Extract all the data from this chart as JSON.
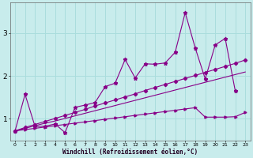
{
  "xlabel": "Windchill (Refroidissement éolien,°C)",
  "background_color": "#c8ecec",
  "line_color": "#880088",
  "grid_color": "#aadddd",
  "xlim": [
    -0.5,
    23.5
  ],
  "ylim": [
    0.5,
    3.7
  ],
  "yticks": [
    1,
    2,
    3
  ],
  "xticks": [
    0,
    1,
    2,
    3,
    4,
    5,
    6,
    7,
    8,
    9,
    10,
    11,
    12,
    13,
    14,
    15,
    16,
    17,
    18,
    19,
    20,
    21,
    22,
    23
  ],
  "s1_x": [
    0,
    1,
    2,
    3,
    4,
    5,
    6,
    7,
    8,
    9,
    10,
    11,
    12,
    13,
    14,
    15,
    16,
    17,
    18,
    19,
    20,
    21,
    22
  ],
  "s1_y": [
    0.72,
    1.57,
    0.82,
    0.83,
    0.88,
    0.68,
    1.27,
    1.32,
    1.38,
    1.75,
    1.83,
    2.38,
    1.95,
    2.28,
    2.27,
    2.3,
    2.55,
    3.47,
    2.65,
    1.93,
    2.72,
    2.87,
    1.65
  ],
  "s2_x": [
    0,
    1,
    2,
    3,
    4,
    5,
    6,
    7,
    8,
    9,
    10,
    11,
    12,
    13,
    14,
    15,
    16,
    17,
    18,
    19,
    20,
    21,
    22,
    23
  ],
  "s2_y": [
    0.72,
    0.78,
    0.84,
    0.9,
    0.95,
    1.01,
    1.07,
    1.13,
    1.19,
    1.25,
    1.31,
    1.37,
    1.43,
    1.49,
    1.55,
    1.61,
    1.67,
    1.73,
    1.79,
    1.85,
    1.91,
    1.97,
    2.03,
    2.09
  ],
  "s3_x": [
    0,
    1,
    2,
    3,
    4,
    5,
    6,
    7,
    8,
    9,
    10,
    11,
    12,
    13,
    14,
    15,
    16,
    17,
    18,
    19,
    20,
    21,
    22,
    23
  ],
  "s3_y": [
    0.72,
    0.8,
    0.87,
    0.94,
    1.01,
    1.08,
    1.15,
    1.22,
    1.3,
    1.37,
    1.44,
    1.51,
    1.58,
    1.66,
    1.73,
    1.8,
    1.87,
    1.94,
    2.01,
    2.08,
    2.15,
    2.22,
    2.29,
    2.37
  ],
  "s4_x": [
    0,
    1,
    2,
    3,
    4,
    5,
    6,
    7,
    8,
    9,
    10,
    11,
    12,
    13,
    14,
    15,
    16,
    17,
    18,
    19,
    20,
    21,
    22,
    23
  ],
  "s4_y": [
    0.72,
    0.75,
    0.78,
    0.81,
    0.84,
    0.87,
    0.9,
    0.93,
    0.96,
    0.99,
    1.02,
    1.05,
    1.08,
    1.11,
    1.14,
    1.17,
    1.2,
    1.23,
    1.26,
    1.04,
    1.04,
    1.04,
    1.05,
    1.15
  ]
}
